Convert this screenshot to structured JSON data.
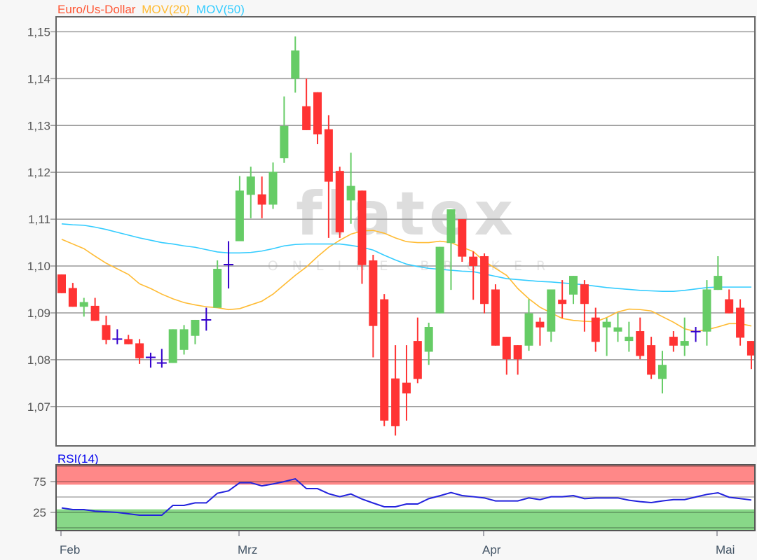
{
  "chart_data": [
    {
      "type": "candlestick",
      "title_parts": [
        {
          "text": "Euro/Us-Dollar",
          "color": "#ff5533"
        },
        {
          "text": "MOV(20)",
          "color": "#ffbb33"
        },
        {
          "text": "MOV(50)",
          "color": "#33ccff"
        }
      ],
      "ylim": [
        1.0616,
        1.1532
      ],
      "y_ticks": [
        {
          "value": 1.15,
          "label": "1,15"
        },
        {
          "value": 1.14,
          "label": "1,14"
        },
        {
          "value": 1.13,
          "label": "1,13"
        },
        {
          "value": 1.12,
          "label": "1,12"
        },
        {
          "value": 1.11,
          "label": "1,11"
        },
        {
          "value": 1.1,
          "label": "1,10"
        },
        {
          "value": 1.09,
          "label": "1,09"
        },
        {
          "value": 1.08,
          "label": "1,08"
        },
        {
          "value": 1.07,
          "label": "1,07"
        }
      ],
      "grid": true,
      "colors": {
        "up": "#66cc66",
        "down": "#ff3333",
        "doji": "#3300cc",
        "ma20": "#ffbb33",
        "ma50": "#33ccff"
      },
      "ohlc": [
        [
          1.0982,
          1.0982,
          1.0942,
          1.0942
        ],
        [
          1.0953,
          1.0964,
          1.0913,
          1.0913
        ],
        [
          1.0913,
          1.0932,
          1.0892,
          1.0923
        ],
        [
          1.0915,
          1.0932,
          1.0883,
          1.0883
        ],
        [
          1.0874,
          1.0894,
          1.0833,
          1.0842
        ],
        [
          1.0844,
          1.0865,
          1.0833,
          1.0844
        ],
        [
          1.0844,
          1.0853,
          1.0833,
          1.0833
        ],
        [
          1.0835,
          1.0844,
          1.0791,
          1.0803
        ],
        [
          1.0805,
          1.0815,
          1.0783,
          1.0805
        ],
        [
          1.0793,
          1.0823,
          1.0783,
          1.0793
        ],
        [
          1.0793,
          1.0865,
          1.0793,
          1.0865
        ],
        [
          1.0821,
          1.0874,
          1.0811,
          1.0865
        ],
        [
          1.0851,
          1.0885,
          1.0833,
          1.0885
        ],
        [
          1.0885,
          1.0911,
          1.0862,
          1.0885
        ],
        [
          1.0911,
          1.1012,
          1.0911,
          1.0994
        ],
        [
          1.1003,
          1.1053,
          1.0952,
          1.1003
        ],
        [
          1.1053,
          1.1192,
          1.1053,
          1.1161
        ],
        [
          1.1152,
          1.1212,
          1.1102,
          1.1191
        ],
        [
          1.1153,
          1.1191,
          1.1102,
          1.1131
        ],
        [
          1.1131,
          1.1221,
          1.1122,
          1.1201
        ],
        [
          1.123,
          1.1362,
          1.122,
          1.1299
        ],
        [
          1.14,
          1.149,
          1.137,
          1.146
        ],
        [
          1.1341,
          1.14,
          1.129,
          1.129
        ],
        [
          1.1371,
          1.1371,
          1.126,
          1.1281
        ],
        [
          1.1292,
          1.1322,
          1.106,
          1.118
        ],
        [
          1.1203,
          1.1212,
          1.106,
          1.1072
        ],
        [
          1.114,
          1.1242,
          1.109,
          1.1171
        ],
        [
          1.1161,
          1.1161,
          1.0962,
          1.1002
        ],
        [
          1.1012,
          1.1024,
          1.0805,
          1.0872
        ],
        [
          1.0929,
          1.094,
          1.0658,
          1.067
        ],
        [
          1.076,
          1.0831,
          1.0638,
          1.0658
        ],
        [
          1.0751,
          1.0831,
          1.067,
          1.0728
        ],
        [
          1.084,
          1.089,
          1.075,
          1.0759
        ],
        [
          1.0817,
          1.0879,
          1.0789,
          1.087
        ],
        [
          1.0899,
          1.1041,
          1.0899,
          1.1041
        ],
        [
          1.1049,
          1.1121,
          1.0949,
          1.1121
        ],
        [
          1.11,
          1.11,
          1.1009,
          1.102
        ],
        [
          1.102,
          1.1031,
          1.0928,
          1.1
        ],
        [
          1.1021,
          1.1027,
          1.0899,
          1.0919
        ],
        [
          1.095,
          1.0961,
          1.083,
          1.083
        ],
        [
          1.0849,
          1.0849,
          1.0768,
          1.0801
        ],
        [
          1.0831,
          1.0831,
          1.0768,
          1.0801
        ],
        [
          1.083,
          1.0929,
          1.0819,
          1.0899
        ],
        [
          1.0881,
          1.089,
          1.083,
          1.0869
        ],
        [
          1.086,
          1.095,
          1.0838,
          1.095
        ],
        [
          1.0928,
          1.097,
          1.0889,
          1.0919
        ],
        [
          1.0939,
          1.0979,
          1.0919,
          1.0979
        ],
        [
          1.0961,
          1.097,
          1.086,
          1.0919
        ],
        [
          1.089,
          1.0911,
          1.0817,
          1.0838
        ],
        [
          1.0869,
          1.0889,
          1.0808,
          1.0881
        ],
        [
          1.086,
          1.0899,
          1.0838,
          1.0869
        ],
        [
          1.084,
          1.0881,
          1.0817,
          1.0849
        ],
        [
          1.0861,
          1.089,
          1.0801,
          1.0808
        ],
        [
          1.0831,
          1.0849,
          1.0759,
          1.0768
        ],
        [
          1.0759,
          1.0819,
          1.0728,
          1.0789
        ],
        [
          1.0849,
          1.0861,
          1.0817,
          1.083
        ],
        [
          1.083,
          1.089,
          1.0808,
          1.084
        ],
        [
          1.086,
          1.087,
          1.0838,
          1.086
        ],
        [
          1.086,
          1.097,
          1.083,
          1.095
        ],
        [
          1.0949,
          1.1021,
          1.0949,
          1.0979
        ],
        [
          1.0929,
          1.095,
          1.0899,
          1.0899
        ],
        [
          1.0911,
          1.0929,
          1.083,
          1.0847
        ],
        [
          1.084,
          1.084,
          1.078,
          1.0809
        ]
      ],
      "series": [
        {
          "name": "MOV(20)",
          "values": [
            1.1057,
            1.1047,
            1.1037,
            1.1021,
            1.1006,
            1.0994,
            1.0982,
            1.0962,
            1.0952,
            1.094,
            1.093,
            1.0922,
            1.0917,
            1.0913,
            1.0911,
            1.0907,
            1.0909,
            1.0917,
            1.0925,
            1.094,
            1.096,
            1.098,
            1.0998,
            1.102,
            1.104,
            1.1055,
            1.1068,
            1.1075,
            1.1076,
            1.107,
            1.106,
            1.1052,
            1.105,
            1.105,
            1.1053,
            1.105,
            1.104,
            1.1031,
            1.101,
            1.0995,
            1.098,
            1.0952,
            1.093,
            1.0912,
            1.09,
            1.0888,
            1.0884,
            1.0882,
            1.0881,
            1.089,
            1.0902,
            1.0908,
            1.0907,
            1.0904,
            1.0892,
            1.088,
            1.0866,
            1.086,
            1.0864,
            1.087,
            1.0877,
            1.0877,
            1.0872
          ]
        },
        {
          "name": "MOV(50)",
          "values": [
            1.109,
            1.1088,
            1.1087,
            1.1083,
            1.1078,
            1.1072,
            1.1066,
            1.106,
            1.1055,
            1.105,
            1.1047,
            1.1043,
            1.104,
            1.1035,
            1.103,
            1.1028,
            1.1028,
            1.1029,
            1.1032,
            1.1037,
            1.1043,
            1.1046,
            1.1047,
            1.1047,
            1.1047,
            1.1047,
            1.1044,
            1.104,
            1.1034,
            1.1023,
            1.1013,
            1.1004,
            1.0999,
            1.0995,
            1.0993,
            1.0991,
            1.0989,
            1.0988,
            1.0983,
            1.0978,
            1.0973,
            1.0971,
            1.0969,
            1.0967,
            1.0966,
            1.0964,
            1.0962,
            1.096,
            1.0957,
            1.0954,
            1.0952,
            1.095,
            1.0948,
            1.0947,
            1.0946,
            1.0946,
            1.0948,
            1.0951,
            1.0954,
            1.0955,
            1.0955,
            1.0955,
            1.0955
          ]
        }
      ],
      "x_ticks": [
        {
          "label": "Feb",
          "index": 0
        },
        {
          "label": "Mrz",
          "index": 16
        },
        {
          "label": "Apr",
          "index": 38
        },
        {
          "label": "Mai",
          "index": 59
        }
      ]
    },
    {
      "type": "line",
      "title": "RSI(14)",
      "title_color": "#0000ee",
      "ylim": [
        -3,
        102
      ],
      "y_ticks": [
        {
          "value": 75,
          "label": "75"
        },
        {
          "value": 25,
          "label": "25"
        }
      ],
      "midline": 50,
      "overbought_zone": [
        70,
        100
      ],
      "oversold_zone": [
        0,
        30
      ],
      "colors": {
        "line": "#2222dd",
        "overbought": "#ff8888",
        "oversold": "#88d888"
      },
      "values": [
        32.2,
        29.5,
        29.5,
        27,
        26,
        25,
        22.7,
        20.5,
        20.5,
        20.5,
        36.4,
        36.4,
        40.5,
        40.5,
        56.1,
        60,
        73.1,
        73.1,
        68,
        71.2,
        75,
        79.5,
        63.6,
        63.6,
        55.3,
        50.4,
        54.9,
        46.6,
        40.2,
        34.1,
        34.1,
        38.6,
        38.6,
        47.3,
        52,
        57.2,
        52.3,
        50.5,
        48.5,
        43.6,
        43.6,
        43.6,
        48.5,
        45.8,
        50.4,
        50.4,
        52.3,
        47.3,
        48.5,
        48.5,
        48.5,
        44.7,
        42.5,
        40.9,
        43.6,
        45.8,
        45.8,
        50,
        54.2,
        56.8,
        49.6,
        47.5,
        45.1
      ]
    }
  ],
  "watermark": {
    "logo": "flatex",
    "tagline": "ONLINE BROKER"
  }
}
